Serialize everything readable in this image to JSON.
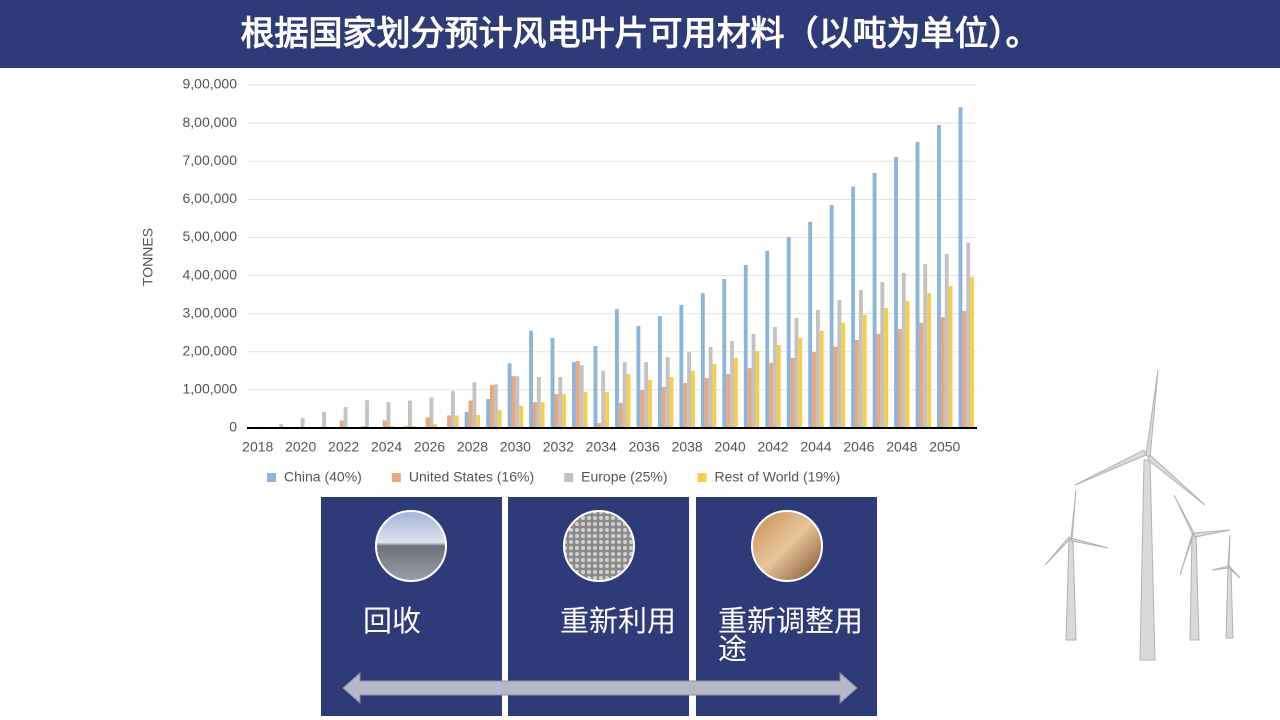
{
  "header": {
    "title": "根据国家划分预计风电叶片可用材料（以吨为单位）。"
  },
  "chart_data": {
    "type": "bar",
    "y_label": "TONNES",
    "categories": [
      "2018",
      null,
      "2020",
      null,
      "2022",
      null,
      "2024",
      null,
      "2026",
      null,
      "2028",
      null,
      "2030",
      null,
      "2032",
      null,
      "2034",
      null,
      "2036",
      null,
      "2038",
      null,
      "2040",
      null,
      "2042",
      null,
      "2044",
      null,
      "2046",
      null,
      "2048",
      null,
      "2050",
      null
    ],
    "series": [
      {
        "name": "China (40%)",
        "color": "#8db4da",
        "values": [
          2000,
          0,
          0,
          0,
          0,
          0,
          0,
          0,
          0,
          0,
          42000,
          76000,
          170000,
          255000,
          236000,
          173000,
          215000,
          312000,
          268000,
          294000,
          323000,
          354000,
          391000,
          428000,
          465000,
          501000,
          541000,
          585000,
          633000,
          669000,
          711000,
          751000,
          795000,
          842000
        ]
      },
      {
        "name": "United States (16%)",
        "color": "#e8a97c",
        "values": [
          1000,
          0,
          0,
          0,
          20000,
          5000,
          20000,
          5000,
          28000,
          33000,
          72000,
          113000,
          136000,
          68000,
          89000,
          176000,
          13000,
          66000,
          100000,
          108000,
          118000,
          131000,
          142000,
          157000,
          171000,
          184000,
          199000,
          213000,
          231000,
          247000,
          260000,
          276000,
          291000,
          307000
        ]
      },
      {
        "name": "Europe (25%)",
        "color": "#c3c3c3",
        "values": [
          3000,
          10000,
          26000,
          42000,
          55000,
          73000,
          68000,
          72000,
          80000,
          97000,
          120000,
          115000,
          136000,
          134000,
          134000,
          165000,
          150000,
          173000,
          173000,
          186000,
          199000,
          213000,
          228000,
          247000,
          265000,
          289000,
          310000,
          336000,
          362000,
          383000,
          407000,
          430000,
          457000,
          486000
        ]
      },
      {
        "name": "Rest of World (19%)",
        "color": "#f5cf4a",
        "values": [
          1000,
          0,
          0,
          0,
          0,
          0,
          5000,
          5000,
          10000,
          33000,
          34000,
          47000,
          58000,
          68000,
          89000,
          94000,
          94000,
          142000,
          126000,
          134000,
          150000,
          168000,
          184000,
          202000,
          218000,
          236000,
          255000,
          276000,
          297000,
          315000,
          333000,
          354000,
          373000,
          396000
        ]
      }
    ],
    "ylim": [
      0,
      900000
    ],
    "yticks": [
      0,
      {
        "value": 100000,
        "label": "1,00,000"
      },
      {
        "value": 200000,
        "label": "2,00,000"
      },
      {
        "value": 300000,
        "label": "3,00,000"
      },
      {
        "value": 400000,
        "label": "4,00,000"
      },
      {
        "value": 500000,
        "label": "5,00,000"
      },
      {
        "value": 600000,
        "label": "6,00,000"
      },
      {
        "value": 700000,
        "label": "7,00,000"
      },
      {
        "value": 800000,
        "label": "8,00,000"
      },
      {
        "value": 900000,
        "label": "9,00,000"
      }
    ],
    "grid": true,
    "legend": "bottom"
  },
  "panels": [
    {
      "label": "回收"
    },
    {
      "label": "重新利用"
    },
    {
      "label": "重新调整用途"
    }
  ]
}
